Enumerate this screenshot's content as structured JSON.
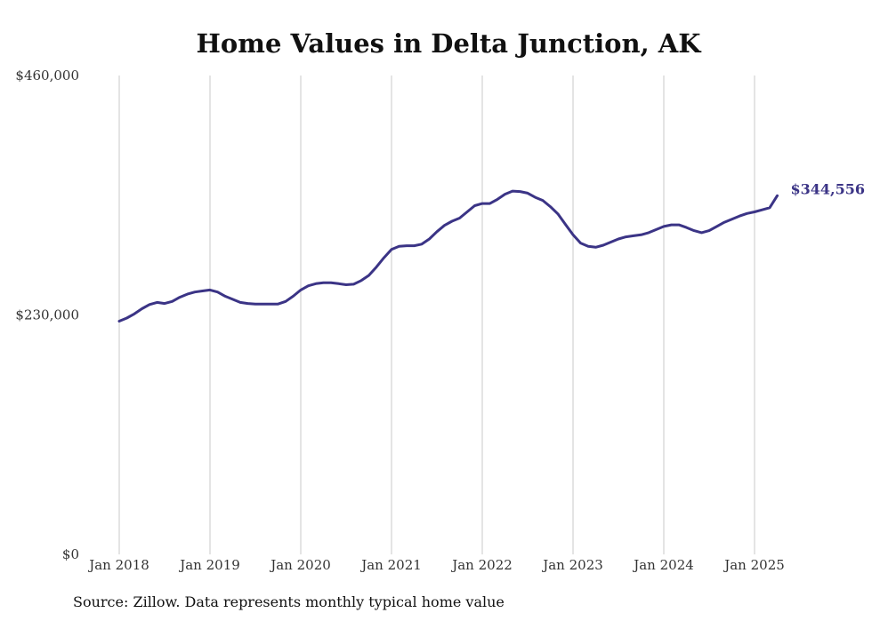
{
  "chart_data": {
    "type": "line",
    "title": "Home Values in Delta Junction, AK",
    "xlabel": "",
    "ylabel": "",
    "x_ticks": [
      "Jan 2018",
      "Jan 2019",
      "Jan 2020",
      "Jan 2021",
      "Jan 2022",
      "Jan 2023",
      "Jan 2024",
      "Jan 2025"
    ],
    "y_ticks": [
      "$0",
      "$230,000",
      "$460,000"
    ],
    "ylim": [
      0,
      460000
    ],
    "grid": "vertical",
    "line_color": "#3b3486",
    "end_label": "$344,556",
    "source": "Source: Zillow. Data represents monthly typical home value",
    "series": [
      {
        "x": [
          "2018-01",
          "2018-02",
          "2018-03",
          "2018-04",
          "2018-05",
          "2018-06",
          "2018-07",
          "2018-08",
          "2018-09",
          "2018-10",
          "2018-11",
          "2018-12",
          "2019-01",
          "2019-02",
          "2019-03",
          "2019-04",
          "2019-05",
          "2019-06",
          "2019-07",
          "2019-08",
          "2019-09",
          "2019-10",
          "2019-11",
          "2019-12",
          "2020-01",
          "2020-02",
          "2020-03",
          "2020-04",
          "2020-05",
          "2020-06",
          "2020-07",
          "2020-08",
          "2020-09",
          "2020-10",
          "2020-11",
          "2020-12",
          "2021-01",
          "2021-02",
          "2021-03",
          "2021-04",
          "2021-05",
          "2021-06",
          "2021-07",
          "2021-08",
          "2021-09",
          "2021-10",
          "2021-11",
          "2021-12",
          "2022-01",
          "2022-02",
          "2022-03",
          "2022-04",
          "2022-05",
          "2022-06",
          "2022-07",
          "2022-08",
          "2022-09",
          "2022-10",
          "2022-11",
          "2022-12",
          "2023-01",
          "2023-02",
          "2023-03",
          "2023-04",
          "2023-05",
          "2023-06",
          "2023-07",
          "2023-08",
          "2023-09",
          "2023-10",
          "2023-11",
          "2023-12",
          "2024-01",
          "2024-02",
          "2024-03",
          "2024-04",
          "2024-05",
          "2024-06",
          "2024-07",
          "2024-08",
          "2024-09",
          "2024-10",
          "2024-11",
          "2024-12",
          "2025-01",
          "2025-02",
          "2025-03",
          "2025-04"
        ],
        "values": [
          224000,
          227000,
          231000,
          236000,
          240000,
          242000,
          241000,
          243000,
          247000,
          250000,
          252000,
          253000,
          254000,
          252000,
          248000,
          245000,
          242000,
          241000,
          240500,
          240500,
          240500,
          240500,
          243000,
          248000,
          254000,
          258000,
          260000,
          261000,
          261000,
          260000,
          259000,
          259500,
          263000,
          268000,
          276000,
          285000,
          293000,
          296000,
          296500,
          296500,
          298000,
          303000,
          310000,
          316000,
          320000,
          323000,
          329000,
          335000,
          337000,
          337000,
          341000,
          346000,
          349000,
          348500,
          347000,
          343000,
          340000,
          334000,
          327000,
          317000,
          307000,
          299000,
          296000,
          295000,
          297000,
          300000,
          303000,
          305000,
          306000,
          307000,
          309000,
          312000,
          315000,
          316500,
          316500,
          314000,
          311000,
          309000,
          311000,
          315000,
          319000,
          322000,
          325000,
          327500,
          329000,
          331000,
          333000,
          344556
        ]
      }
    ]
  }
}
